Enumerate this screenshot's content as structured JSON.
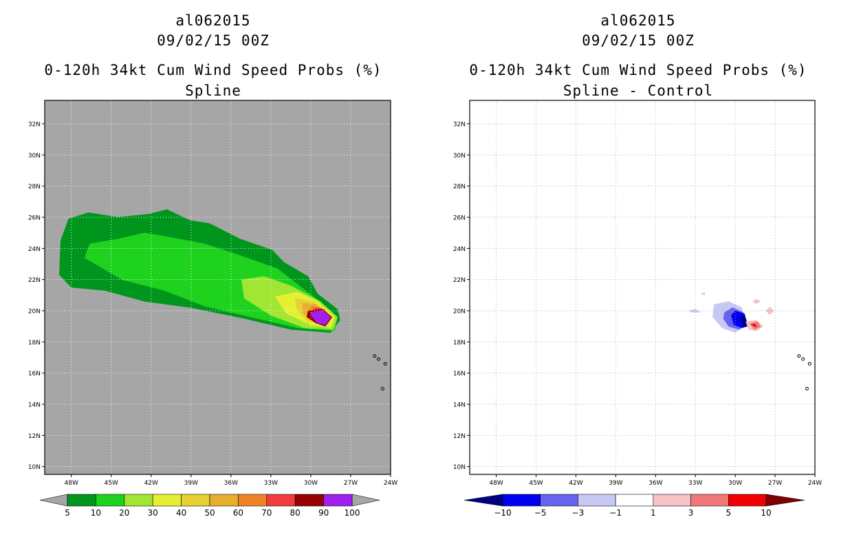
{
  "left": {
    "storm_id": "al062015",
    "datetime": "09/02/15 00Z",
    "product": "0-120h 34kt Cum Wind Speed Probs (%)",
    "subtitle": "Spline"
  },
  "right": {
    "storm_id": "al062015",
    "datetime": "09/02/15 00Z",
    "product": "0-120h 34kt Cum Wind Speed Probs (%)",
    "subtitle": "Spline - Control"
  },
  "chart_data": [
    {
      "type": "heatmap",
      "title": "0-120h 34kt Cum Wind Speed Probs (%) — Spline",
      "x_axis": {
        "range_lon_w": [
          50,
          24
        ],
        "tick_labels": [
          "48W",
          "45W",
          "42W",
          "39W",
          "36W",
          "33W",
          "30W",
          "27W",
          "24W"
        ]
      },
      "y_axis": {
        "range_lat_n": [
          9.5,
          33.5
        ],
        "tick_labels": [
          "10N",
          "12N",
          "14N",
          "16N",
          "18N",
          "20N",
          "22N",
          "24N",
          "26N",
          "28N",
          "30N",
          "32N"
        ]
      },
      "background": "#a6a6a6",
      "colorbar": {
        "labels": [
          "5",
          "10",
          "20",
          "30",
          "40",
          "50",
          "60",
          "70",
          "80",
          "90",
          "100"
        ],
        "colors": [
          "#00961e",
          "#1ed21e",
          "#a0e632",
          "#e6f032",
          "#e6d232",
          "#e6af2d",
          "#f08228",
          "#f03c3c",
          "#960000",
          "#a020f0"
        ],
        "end_colors": [
          "#a6a6a6",
          "#a6a6a6"
        ]
      },
      "contours": [
        {
          "level": 5,
          "color": "#00961e",
          "polygon_lon_lat": [
            [
              -48.9,
              22.3
            ],
            [
              -48.8,
              24.5
            ],
            [
              -48.2,
              25.9
            ],
            [
              -46.7,
              26.3
            ],
            [
              -44.5,
              26.0
            ],
            [
              -42.2,
              26.2
            ],
            [
              -40.8,
              26.5
            ],
            [
              -39.1,
              25.8
            ],
            [
              -37.6,
              25.6
            ],
            [
              -35.3,
              24.6
            ],
            [
              -32.9,
              23.9
            ],
            [
              -32.0,
              23.1
            ],
            [
              -30.2,
              22.2
            ],
            [
              -29.5,
              21.1
            ],
            [
              -28.0,
              20.1
            ],
            [
              -27.8,
              19.4
            ],
            [
              -28.5,
              18.6
            ],
            [
              -31.5,
              18.8
            ],
            [
              -35.0,
              19.5
            ],
            [
              -39.0,
              20.2
            ],
            [
              -42.5,
              20.6
            ],
            [
              -45.5,
              21.3
            ],
            [
              -48.0,
              21.5
            ]
          ]
        },
        {
          "level": 10,
          "color": "#1ed21e",
          "polygon_lon_lat": [
            [
              -47.0,
              23.4
            ],
            [
              -46.6,
              24.3
            ],
            [
              -44.5,
              24.6
            ],
            [
              -42.5,
              25.0
            ],
            [
              -40.5,
              24.7
            ],
            [
              -38.0,
              24.3
            ],
            [
              -35.5,
              23.6
            ],
            [
              -32.5,
              22.7
            ],
            [
              -29.5,
              20.7
            ],
            [
              -28.0,
              19.6
            ],
            [
              -28.2,
              18.7
            ],
            [
              -31.0,
              18.9
            ],
            [
              -34.5,
              19.6
            ],
            [
              -38.0,
              20.3
            ],
            [
              -41.0,
              21.3
            ],
            [
              -44.2,
              22.0
            ]
          ]
        },
        {
          "level": 20,
          "color": "#a0e632",
          "polygon_lon_lat": [
            [
              -35.2,
              22.0
            ],
            [
              -33.5,
              22.2
            ],
            [
              -31.5,
              21.6
            ],
            [
              -29.3,
              20.6
            ],
            [
              -28.0,
              19.6
            ],
            [
              -28.3,
              18.8
            ],
            [
              -30.5,
              18.9
            ],
            [
              -33.0,
              19.7
            ],
            [
              -35.0,
              20.8
            ]
          ]
        },
        {
          "level": 30,
          "color": "#e6f032",
          "polygon_lon_lat": [
            [
              -32.7,
              20.9
            ],
            [
              -31.0,
              21.2
            ],
            [
              -29.5,
              20.6
            ],
            [
              -28.2,
              19.6
            ],
            [
              -28.5,
              18.9
            ],
            [
              -30.0,
              19.1
            ],
            [
              -31.8,
              19.8
            ]
          ]
        },
        {
          "level": 40,
          "color": "#e6d232",
          "polygon_lon_lat": [
            [
              -31.2,
              20.8
            ],
            [
              -29.8,
              20.6
            ],
            [
              -28.5,
              19.7
            ],
            [
              -28.7,
              19.1
            ],
            [
              -30.2,
              19.3
            ],
            [
              -31.0,
              20.0
            ]
          ]
        },
        {
          "level": 50,
          "color": "#e6af2d",
          "polygon_lon_lat": [
            [
              -30.6,
              20.5
            ],
            [
              -29.6,
              20.4
            ],
            [
              -28.6,
              19.7
            ],
            [
              -28.8,
              19.2
            ],
            [
              -30.0,
              19.4
            ],
            [
              -30.6,
              19.9
            ]
          ]
        },
        {
          "level": 60,
          "color": "#f08228",
          "polygon_lon_lat": [
            [
              -30.0,
              20.3
            ],
            [
              -29.3,
              20.2
            ],
            [
              -28.6,
              19.6
            ],
            [
              -28.9,
              19.2
            ],
            [
              -29.8,
              19.4
            ],
            [
              -30.2,
              19.8
            ]
          ]
        },
        {
          "level": 70,
          "color": "#f03c3c",
          "polygon_lon_lat": [
            [
              -29.7,
              20.2
            ],
            [
              -29.0,
              20.1
            ],
            [
              -28.5,
              19.6
            ],
            [
              -28.9,
              19.1
            ],
            [
              -29.5,
              19.3
            ],
            [
              -29.9,
              19.7
            ]
          ]
        },
        {
          "level": 80,
          "color": "#960000",
          "polygon_lon_lat": [
            [
              -30.2,
              20.0
            ],
            [
              -29.2,
              20.1
            ],
            [
              -28.4,
              19.6
            ],
            [
              -28.9,
              19.0
            ],
            [
              -29.6,
              19.2
            ],
            [
              -30.3,
              19.6
            ]
          ]
        },
        {
          "level": 90,
          "color": "#a020f0",
          "polygon_lon_lat": [
            [
              -30.0,
              19.9
            ],
            [
              -29.1,
              20.0
            ],
            [
              -28.5,
              19.6
            ],
            [
              -28.9,
              19.1
            ],
            [
              -29.5,
              19.2
            ],
            [
              -29.9,
              19.6
            ]
          ]
        }
      ]
    },
    {
      "type": "heatmap",
      "title": "0-120h 34kt Cum Wind Speed Probs (%) — Spline - Control",
      "x_axis": {
        "range_lon_w": [
          50,
          24
        ],
        "tick_labels": [
          "48W",
          "45W",
          "42W",
          "39W",
          "36W",
          "33W",
          "30W",
          "27W",
          "24W"
        ]
      },
      "y_axis": {
        "range_lat_n": [
          9.5,
          33.5
        ],
        "tick_labels": [
          "10N",
          "12N",
          "14N",
          "16N",
          "18N",
          "20N",
          "22N",
          "24N",
          "26N",
          "28N",
          "30N",
          "32N"
        ]
      },
      "background": "#ffffff",
      "colorbar": {
        "labels": [
          "-10",
          "-5",
          "-3",
          "-1",
          "1",
          "3",
          "5",
          "10"
        ],
        "colors": [
          "#0000f0",
          "#6464f0",
          "#c8c8f5",
          "#ffffff",
          "#f5c3c3",
          "#f07878",
          "#f00000"
        ],
        "end_colors": [
          "#000080",
          "#800000"
        ]
      },
      "contours": [
        {
          "level": -1,
          "color": "#c8c8f5",
          "polygon_lon_lat": [
            [
              -31.6,
              20.4
            ],
            [
              -30.5,
              20.6
            ],
            [
              -29.5,
              20.2
            ],
            [
              -29.3,
              19.0
            ],
            [
              -30.0,
              18.6
            ],
            [
              -31.0,
              18.9
            ],
            [
              -31.7,
              19.6
            ]
          ]
        },
        {
          "level": -1,
          "color": "#c8c8f5",
          "polygon_lon_lat": [
            [
              -33.5,
              20.0
            ],
            [
              -33.0,
              20.1
            ],
            [
              -32.6,
              19.9
            ],
            [
              -33.3,
              19.9
            ]
          ]
        },
        {
          "level": -1,
          "color": "#c8c8f5",
          "polygon_lon_lat": [
            [
              -32.6,
              21.1
            ],
            [
              -32.3,
              21.15
            ],
            [
              -32.3,
              21.0
            ]
          ]
        },
        {
          "level": -3,
          "color": "#6464f0",
          "polygon_lon_lat": [
            [
              -30.8,
              19.9
            ],
            [
              -30.2,
              20.2
            ],
            [
              -29.4,
              19.9
            ],
            [
              -29.2,
              19.1
            ],
            [
              -29.7,
              18.8
            ],
            [
              -30.5,
              19.0
            ],
            [
              -30.9,
              19.5
            ]
          ]
        },
        {
          "level": -5,
          "color": "#0000f0",
          "polygon_lon_lat": [
            [
              -30.3,
              19.7
            ],
            [
              -30.0,
              20.0
            ],
            [
              -29.3,
              19.8
            ],
            [
              -29.1,
              19.0
            ],
            [
              -29.5,
              18.9
            ],
            [
              -30.1,
              19.1
            ]
          ]
        },
        {
          "level": -10,
          "color": "#000080",
          "polygon_lon_lat": [
            [
              -29.6,
              19.6
            ],
            [
              -29.3,
              19.7
            ],
            [
              -29.0,
              19.0
            ],
            [
              -29.4,
              19.0
            ]
          ]
        },
        {
          "level": 1,
          "color": "#f5c3c3",
          "polygon_lon_lat": [
            [
              -29.2,
              19.3
            ],
            [
              -28.4,
              19.4
            ],
            [
              -27.9,
              19.0
            ],
            [
              -28.4,
              18.7
            ],
            [
              -29.0,
              18.8
            ]
          ]
        },
        {
          "level": 1,
          "color": "#f5c3c3",
          "polygon_lon_lat": [
            [
              -27.7,
              20.0
            ],
            [
              -27.4,
              20.25
            ],
            [
              -27.1,
              20.0
            ],
            [
              -27.4,
              19.75
            ]
          ]
        },
        {
          "level": 1,
          "color": "#f5c3c3",
          "polygon_lon_lat": [
            [
              -28.7,
              20.6
            ],
            [
              -28.4,
              20.75
            ],
            [
              -28.1,
              20.6
            ],
            [
              -28.4,
              20.45
            ]
          ]
        },
        {
          "level": 3,
          "color": "#f07878",
          "polygon_lon_lat": [
            [
              -28.9,
              19.2
            ],
            [
              -28.3,
              19.3
            ],
            [
              -28.1,
              18.95
            ],
            [
              -28.6,
              18.8
            ]
          ]
        },
        {
          "level": 5,
          "color": "#f00000",
          "polygon_lon_lat": [
            [
              -28.8,
              19.1
            ],
            [
              -28.5,
              19.15
            ],
            [
              -28.4,
              18.95
            ]
          ]
        }
      ]
    }
  ]
}
